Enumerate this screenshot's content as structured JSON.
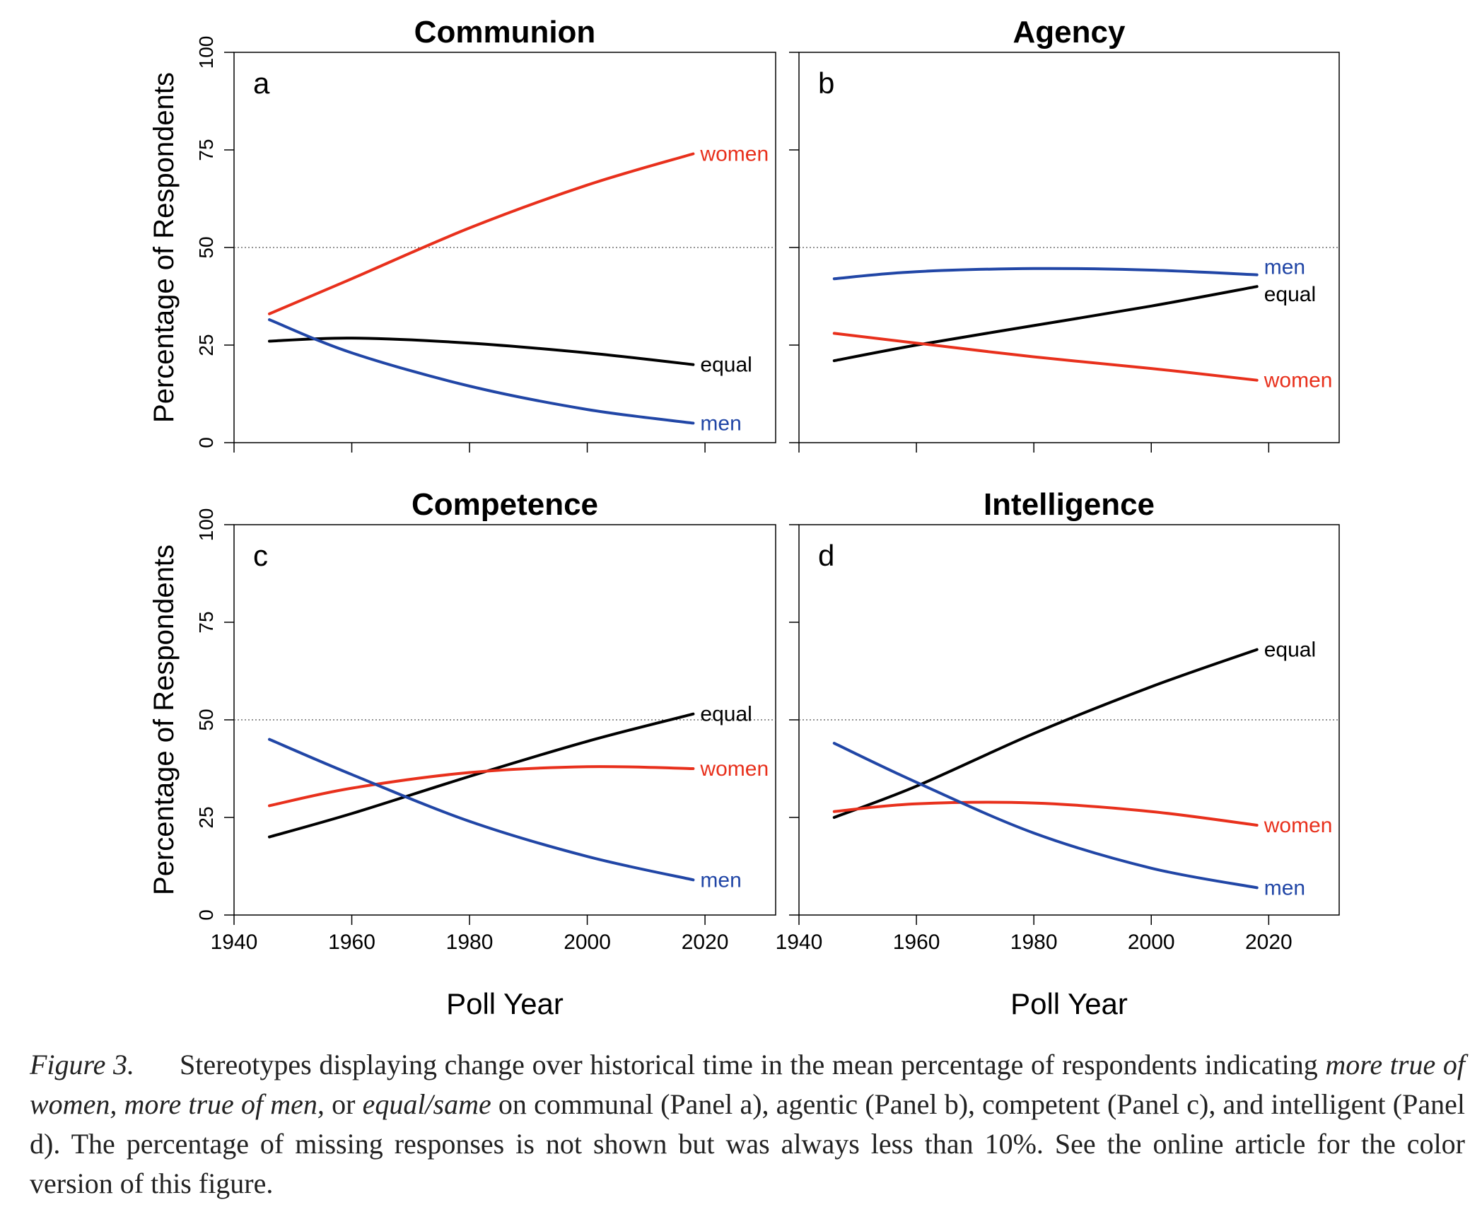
{
  "figure": {
    "y_axis_label": "Percentage of Respondents",
    "x_axis_label": "Poll Year",
    "y_ticks": [
      0,
      25,
      50,
      75,
      100
    ],
    "x_ticks": [
      1940,
      1960,
      1980,
      2000,
      2020
    ]
  },
  "caption": {
    "figure_label": "Figure 3.",
    "text_1": "Stereotypes displaying change over historical time in the mean percentage of respondents indicating ",
    "italic_1": "more true of women, more true of men,",
    "text_2": " or ",
    "italic_2": "equal/same",
    "text_3": " on communal (Panel a), agentic (Panel b), competent (Panel c), and intelligent (Panel d). The percentage of missing responses is not shown but was always less than 10%. See the online article for the color version of this figure."
  },
  "colors": {
    "women": "#e8301c",
    "men": "#2146a6",
    "equal": "#000000"
  },
  "chart_data": [
    {
      "type": "line",
      "title": "Communion",
      "panel_label": "a",
      "xlabel": "",
      "ylabel": "Percentage of Respondents",
      "xlim": [
        1940,
        2032
      ],
      "ylim": [
        0,
        100
      ],
      "x_ticks": [
        1940,
        1960,
        1980,
        2000,
        2020
      ],
      "y_ticks": [
        0,
        25,
        50,
        75,
        100
      ],
      "reference_line": 50,
      "x": [
        1946,
        1960,
        1980,
        2000,
        2018
      ],
      "series": [
        {
          "name": "women",
          "color": "#e8301c",
          "values": [
            33,
            42,
            55,
            66,
            74
          ]
        },
        {
          "name": "equal",
          "color": "#000000",
          "values": [
            26,
            26.8,
            25.5,
            23,
            20
          ]
        },
        {
          "name": "men",
          "color": "#2146a6",
          "values": [
            31.5,
            23,
            14.5,
            8.5,
            5
          ]
        }
      ]
    },
    {
      "type": "line",
      "title": "Agency",
      "panel_label": "b",
      "xlabel": "",
      "ylabel": "",
      "xlim": [
        1940,
        2032
      ],
      "ylim": [
        0,
        100
      ],
      "x_ticks": [
        1940,
        1960,
        1980,
        2000,
        2020
      ],
      "y_ticks": [
        0,
        25,
        50,
        75,
        100
      ],
      "reference_line": 50,
      "x": [
        1946,
        1960,
        1980,
        2000,
        2018
      ],
      "series": [
        {
          "name": "men",
          "color": "#2146a6",
          "values": [
            42,
            43.8,
            44.6,
            44.2,
            43
          ]
        },
        {
          "name": "equal",
          "color": "#000000",
          "values": [
            21,
            25,
            30,
            35,
            40
          ]
        },
        {
          "name": "women",
          "color": "#e8301c",
          "values": [
            28,
            25.5,
            22,
            19,
            16
          ]
        }
      ]
    },
    {
      "type": "line",
      "title": "Competence",
      "panel_label": "c",
      "xlabel": "Poll Year",
      "ylabel": "Percentage of Respondents",
      "xlim": [
        1940,
        2032
      ],
      "ylim": [
        0,
        100
      ],
      "x_ticks": [
        1940,
        1960,
        1980,
        2000,
        2020
      ],
      "y_ticks": [
        0,
        25,
        50,
        75,
        100
      ],
      "reference_line": 50,
      "x": [
        1946,
        1960,
        1980,
        2000,
        2018
      ],
      "series": [
        {
          "name": "equal",
          "color": "#000000",
          "values": [
            20,
            26,
            35.5,
            44.5,
            51.5
          ]
        },
        {
          "name": "women",
          "color": "#e8301c",
          "values": [
            28,
            32.5,
            36.5,
            38,
            37.5
          ]
        },
        {
          "name": "men",
          "color": "#2146a6",
          "values": [
            45,
            36,
            24,
            15,
            9
          ]
        }
      ]
    },
    {
      "type": "line",
      "title": "Intelligence",
      "panel_label": "d",
      "xlabel": "Poll Year",
      "ylabel": "",
      "xlim": [
        1940,
        2032
      ],
      "ylim": [
        0,
        100
      ],
      "x_ticks": [
        1940,
        1960,
        1980,
        2000,
        2020
      ],
      "y_ticks": [
        0,
        25,
        50,
        75,
        100
      ],
      "reference_line": 50,
      "x": [
        1946,
        1960,
        1980,
        2000,
        2018
      ],
      "series": [
        {
          "name": "equal",
          "color": "#000000",
          "values": [
            25,
            33,
            46.5,
            58.5,
            68
          ]
        },
        {
          "name": "women",
          "color": "#e8301c",
          "values": [
            26.5,
            28.5,
            28.7,
            26.5,
            23
          ]
        },
        {
          "name": "men",
          "color": "#2146a6",
          "values": [
            44,
            34,
            21,
            12,
            7
          ]
        }
      ]
    }
  ]
}
